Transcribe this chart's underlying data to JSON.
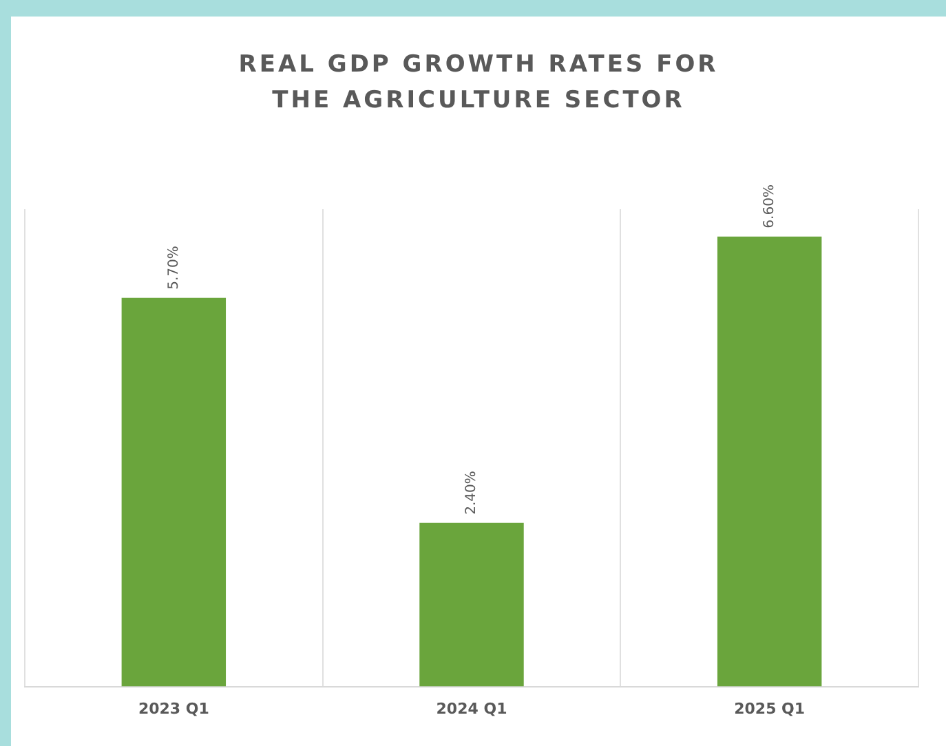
{
  "chart_data": {
    "type": "bar",
    "title": "REAL GDP GROWTH RATES FOR THE AGRICULTURE SECTOR",
    "categories": [
      "2023 Q1",
      "2024 Q1",
      "2025 Q1"
    ],
    "values": [
      5.7,
      2.4,
      6.6
    ],
    "color": "#6aa53c",
    "value_labels": [
      "5.70%",
      "2.40%",
      "6.60%"
    ],
    "grid": "x"
  }
}
